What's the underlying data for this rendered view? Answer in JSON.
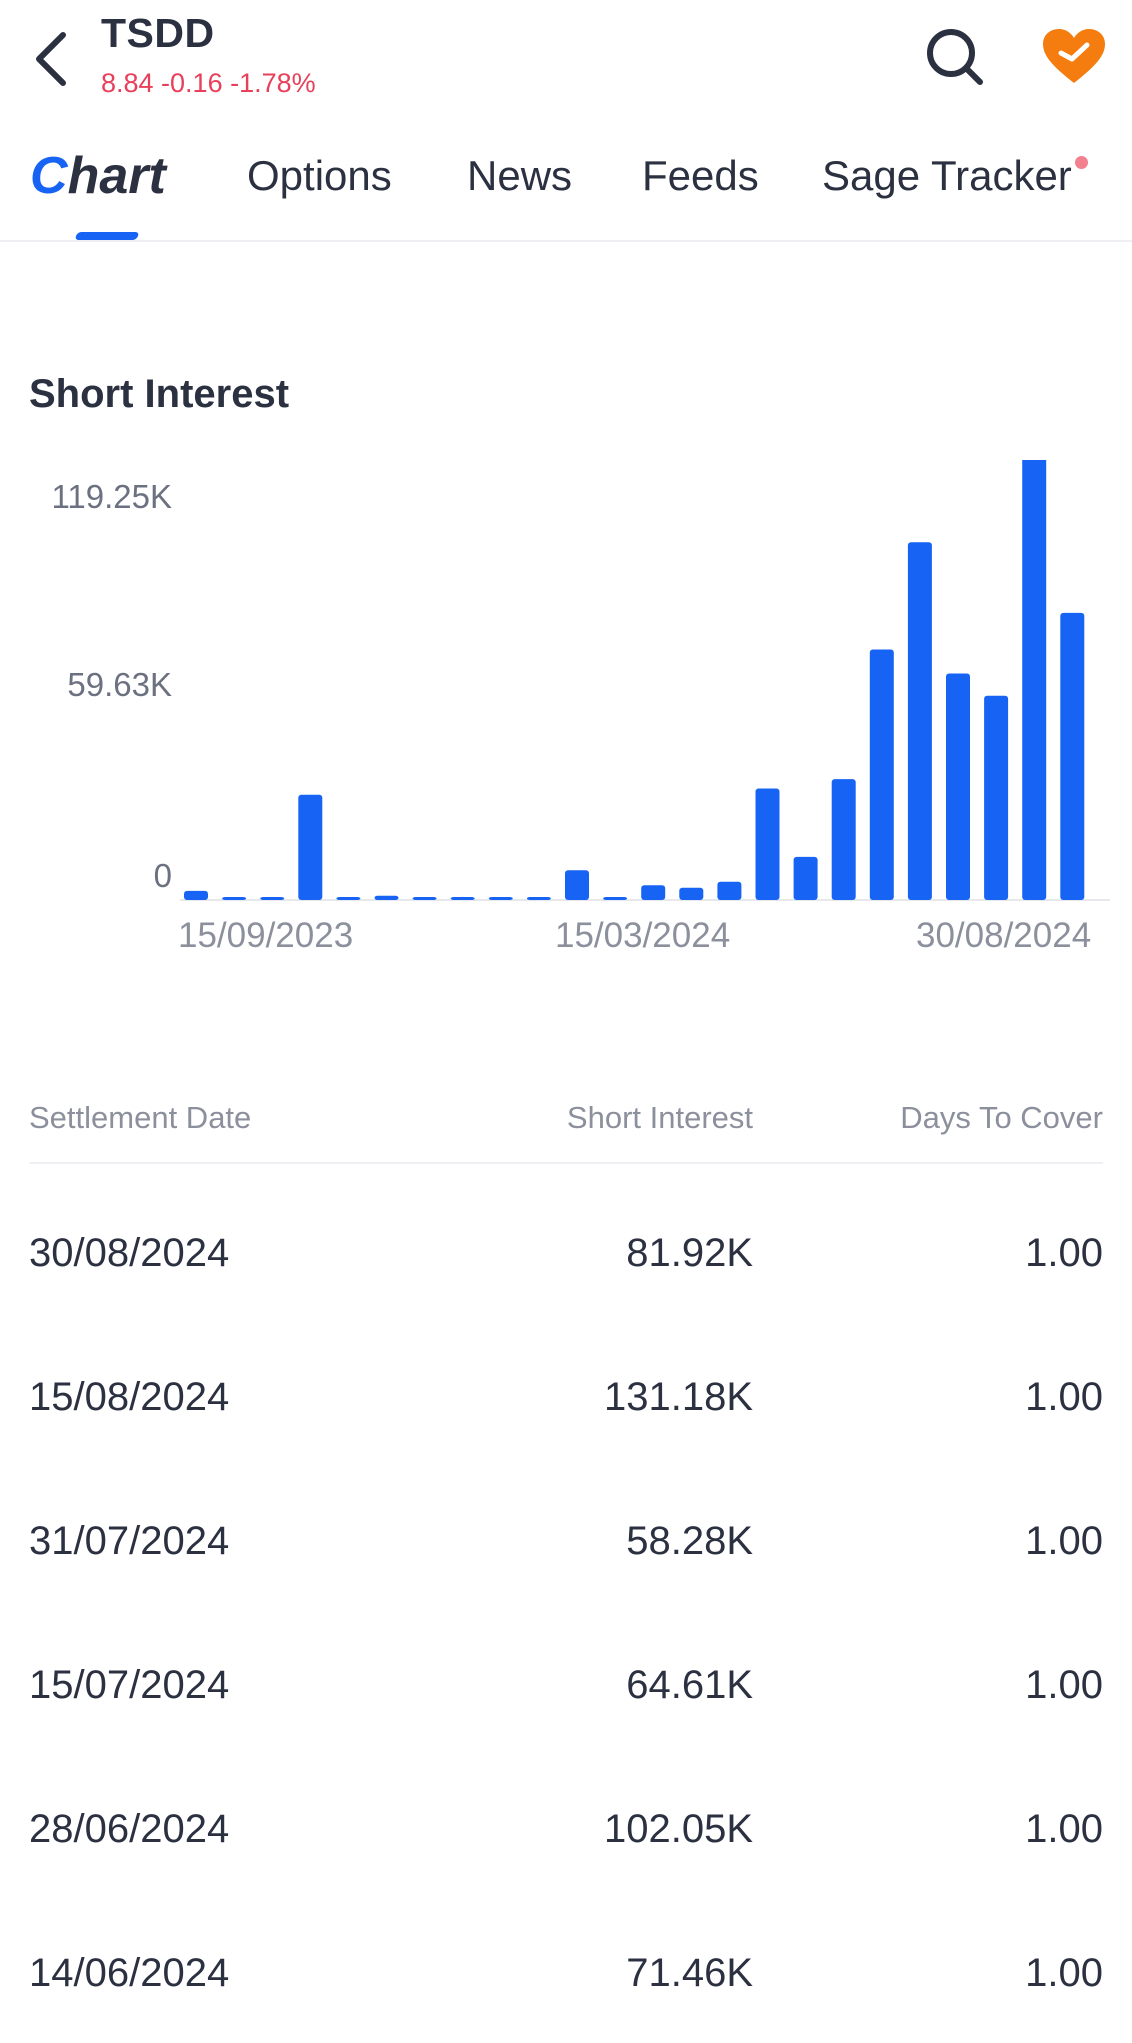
{
  "header": {
    "ticker": "TSDD",
    "quote": "8.84 -0.16 -1.78%",
    "back_icon": "chevron-left-icon",
    "search_icon": "search-icon",
    "favorite_icon": "heart-icon",
    "quote_color": "#e8405a",
    "favorite_color": "#f57c0e"
  },
  "tabs": [
    {
      "label_first": "C",
      "label_rest": "hart",
      "active": true
    },
    {
      "label": "Options"
    },
    {
      "label": "News"
    },
    {
      "label": "Feeds"
    },
    {
      "label": "Sage Tracker",
      "has_dot": true
    }
  ],
  "section": {
    "title": "Short Interest"
  },
  "chart_data": {
    "type": "bar",
    "title": "Short Interest",
    "y_ticks": [
      "119.25K",
      "59.63K",
      "0"
    ],
    "x_ticks": [
      "15/09/2023",
      "15/03/2024",
      "30/08/2024"
    ],
    "ylim": [
      0,
      119250
    ],
    "grid": false,
    "bar_color": "#1764f4",
    "values": [
      2600,
      400,
      300,
      30000,
      800,
      1200,
      600,
      300,
      300,
      300,
      8500,
      300,
      4200,
      3500,
      5200,
      31800,
      12300,
      34500,
      71460,
      102050,
      64610,
      58280,
      131180,
      81920
    ]
  },
  "table": {
    "headers": [
      "Settlement Date",
      "Short Interest",
      "Days To Cover"
    ],
    "rows": [
      [
        "30/08/2024",
        "81.92K",
        "1.00"
      ],
      [
        "15/08/2024",
        "131.18K",
        "1.00"
      ],
      [
        "31/07/2024",
        "58.28K",
        "1.00"
      ],
      [
        "15/07/2024",
        "64.61K",
        "1.00"
      ],
      [
        "28/06/2024",
        "102.05K",
        "1.00"
      ],
      [
        "14/06/2024",
        "71.46K",
        "1.00"
      ]
    ]
  }
}
